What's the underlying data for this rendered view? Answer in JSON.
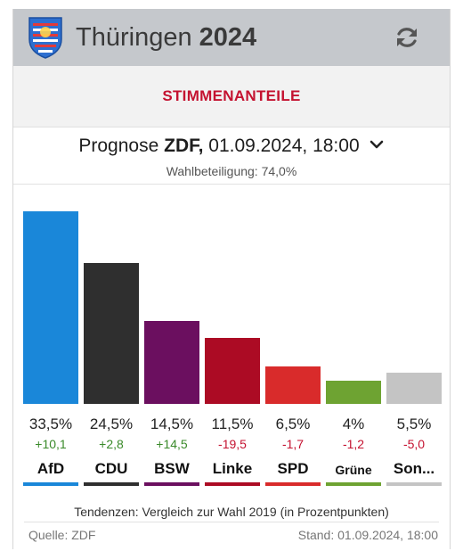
{
  "header": {
    "state": "Thüringen",
    "year": "2024"
  },
  "tabs": {
    "active_label": "STIMMENANTEILE"
  },
  "selector": {
    "prefix": "Prognose",
    "source": "ZDF,",
    "datetime": "01.09.2024, 18:00"
  },
  "turnout": "Wahlbeteiligung: 74,0%",
  "chart_data": {
    "type": "bar",
    "categories": [
      "AfD",
      "CDU",
      "BSW",
      "Linke",
      "SPD",
      "Grüne",
      "Son..."
    ],
    "values": [
      33.5,
      24.5,
      14.5,
      11.5,
      6.5,
      4.0,
      5.5
    ],
    "value_labels": [
      "33,5%",
      "24,5%",
      "14,5%",
      "11,5%",
      "6,5%",
      "4%",
      "5,5%"
    ],
    "changes": [
      10.1,
      2.8,
      14.5,
      -19.5,
      -1.7,
      -1.2,
      -5.0
    ],
    "change_labels": [
      "+10,1",
      "+2,8",
      "+14,5",
      "-19,5",
      "-1,7",
      "-1,2",
      "-5,0"
    ],
    "colors": [
      "#1a87d9",
      "#2f2f2f",
      "#6b0f5f",
      "#ac0b24",
      "#d92b2b",
      "#6ea332",
      "#c4c4c4"
    ],
    "ylim": [
      0,
      33.5
    ]
  },
  "colors": {
    "accent": "#c41230",
    "header_bg": "#c5c8cc",
    "positive": "#3a8a2a",
    "negative": "#c41230"
  },
  "note": "Tendenzen: Vergleich zur Wahl 2019 (in Prozentpunkten)",
  "footer": {
    "source": "Quelle: ZDF",
    "stand": "Stand: 01.09.2024, 18:00"
  }
}
